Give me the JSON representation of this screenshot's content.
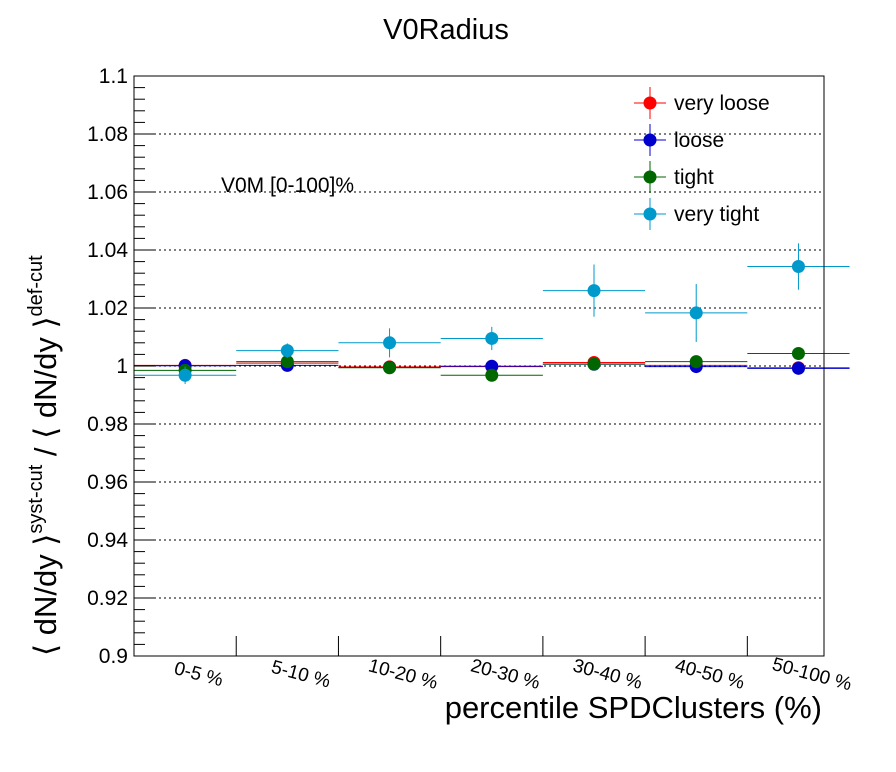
{
  "chart_data": {
    "type": "scatter",
    "title": "V0Radius",
    "xlabel": "percentile SPDClusters (%)",
    "ylabel": {
      "numerator": "⟨ dN/dy ⟩",
      "numerator_sup": "syst-cut",
      "separator": " / ",
      "denominator": "⟨ dN/dy ⟩",
      "denominator_sup": "def-cut"
    },
    "annotation": "V0M [0-100]%",
    "categories": [
      "0-5 %",
      "5-10 %",
      "10-20 %",
      "20-30 %",
      "30-40 %",
      "40-50 %",
      "50-100 %"
    ],
    "ylim": [
      0.9,
      1.1
    ],
    "yticks": [
      "0.9",
      "0.92",
      "0.94",
      "0.96",
      "0.98",
      "1",
      "1.02",
      "1.04",
      "1.06",
      "1.08",
      "1.1"
    ],
    "grid": "horizontal-dotted",
    "legend_position": "top-right",
    "series": [
      {
        "name": "very loose",
        "color": "#ff0000",
        "values": [
          1.0002,
          1.001,
          0.9997,
          0.9998,
          1.0012,
          1.0002,
          0.9994
        ],
        "errors": [
          0.0015,
          0.0015,
          0.0015,
          0.0015,
          0.002,
          0.002,
          0.0015
        ]
      },
      {
        "name": "loose",
        "color": "#0000cc",
        "values": [
          1.0001,
          1.0002,
          0.9995,
          0.9999,
          1.0006,
          0.9998,
          0.9992
        ],
        "errors": [
          0.0015,
          0.0015,
          0.0015,
          0.0015,
          0.002,
          0.002,
          0.0015
        ]
      },
      {
        "name": "tight",
        "color": "#006600",
        "values": [
          0.9985,
          1.0015,
          0.9994,
          0.9968,
          1.0007,
          1.0015,
          1.0043
        ],
        "errors": [
          0.0015,
          0.0015,
          0.0015,
          0.0015,
          0.002,
          0.002,
          0.0015
        ]
      },
      {
        "name": "very tight",
        "color": "#0099cc",
        "values": [
          0.9968,
          1.0053,
          1.008,
          1.0095,
          1.026,
          1.0183,
          1.0343
        ],
        "errors": [
          0.003,
          0.0025,
          0.005,
          0.004,
          0.009,
          0.01,
          0.008
        ]
      }
    ]
  }
}
